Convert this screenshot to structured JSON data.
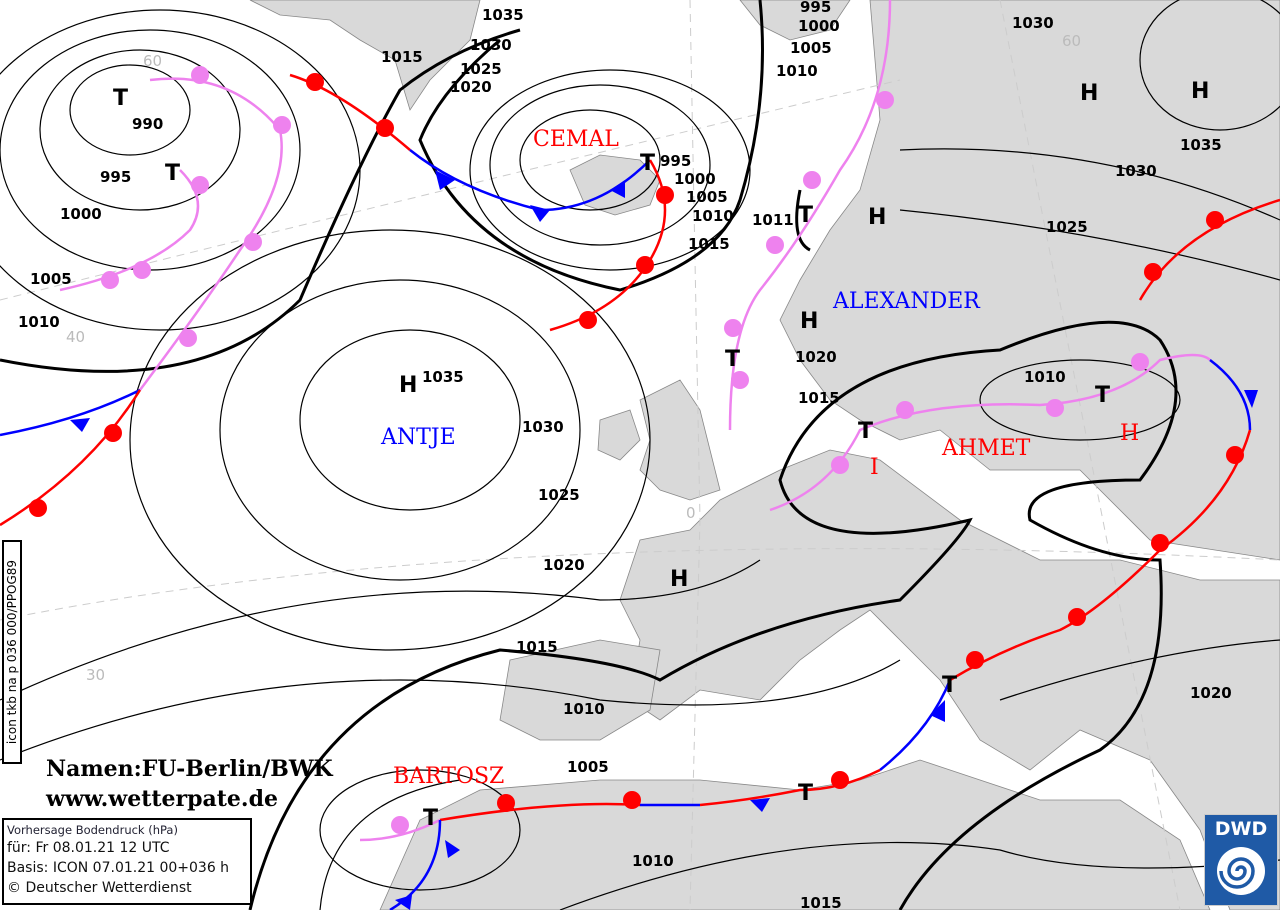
{
  "map": {
    "isobar_labels": [
      "1035",
      "1030",
      "1025",
      "1020",
      "1015",
      "995",
      "1000",
      "1005",
      "1010",
      "1030",
      "990",
      "995",
      "1000",
      "1005",
      "1010",
      "995",
      "1000",
      "1005",
      "1010",
      "1015",
      "1011",
      "1035",
      "1030",
      "1025",
      "1020",
      "1015",
      "1010",
      "1035",
      "1030",
      "1025",
      "1020",
      "1015",
      "1010",
      "1005",
      "1010",
      "1015",
      "1020"
    ],
    "grid_labels": [
      "60",
      "40",
      "30",
      "0",
      "60"
    ],
    "pressure_systems": [
      {
        "name": "CEMAL",
        "color": "#ff0000"
      },
      {
        "name": "ALEXANDER",
        "color": "#0000ff"
      },
      {
        "name": "ANTJE",
        "color": "#0000ff"
      },
      {
        "name": "AHMET",
        "color": "#ff0000"
      },
      {
        "name": "BARTOSZ",
        "color": "#ff0000"
      }
    ],
    "symbols": {
      "high": "H",
      "low": "T",
      "red_high": "H",
      "red_i": "I"
    },
    "colors": {
      "land": "#d9d9d9",
      "warm_front": "#ff0000",
      "cold_front": "#0000ff",
      "occlusion": "#ee82ee",
      "isobar": "#000000"
    }
  },
  "credits": {
    "line1": "Namen:FU-Berlin/BWK",
    "line2": "www.wetterpate.de"
  },
  "infobox": {
    "title": "Vorhersage Bodendruck (hPa)",
    "valid": "für:  Fr 08.01.21  12 UTC",
    "basis": "Basis: ICON  07.01.21 00+036 h",
    "copyright": "© Deutscher Wetterdienst"
  },
  "product_code": "icon tkb na p 036 000/PPOG89",
  "logo": {
    "text": "DWD"
  }
}
